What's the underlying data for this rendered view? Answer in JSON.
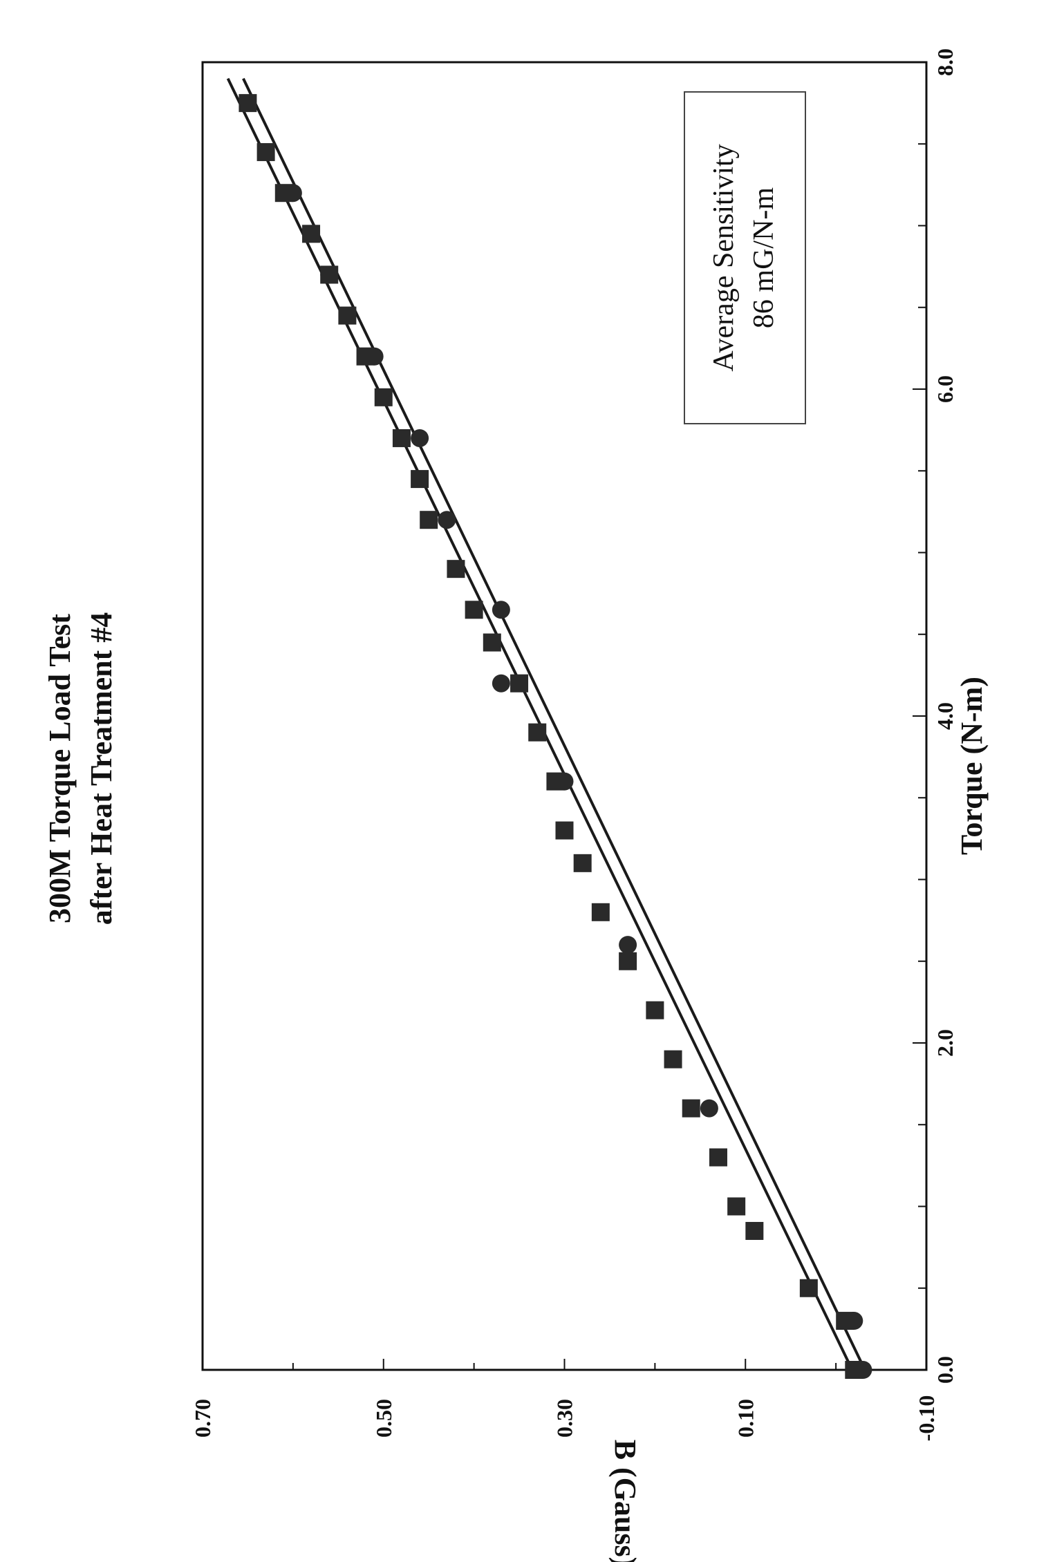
{
  "chart_data": {
    "type": "scatter",
    "title": "300M Torque Load Test",
    "subtitle": "after Heat Treatment #4",
    "xlabel": "Torque (N-m)",
    "ylabel": "B (Gauss)",
    "xlim": [
      0.0,
      8.0
    ],
    "ylim": [
      -0.1,
      0.7
    ],
    "x_ticks": [
      "0.0",
      "2.0",
      "4.0",
      "6.0",
      "8.0"
    ],
    "y_ticks": [
      "-0.10",
      "0.10",
      "0.30",
      "0.50",
      "0.70"
    ],
    "grid": false,
    "legend": "none",
    "annotation": [
      "Average Sensitivity",
      "86 mG/N-m"
    ],
    "orientation": "rotated-90-ccw",
    "series": [
      {
        "marker": "square",
        "color": "#2a2a2a",
        "points": [
          [
            0.0,
            -0.02
          ],
          [
            0.3,
            -0.01
          ],
          [
            0.5,
            0.03
          ],
          [
            0.85,
            0.09
          ],
          [
            1.0,
            0.11
          ],
          [
            1.3,
            0.13
          ],
          [
            1.6,
            0.16
          ],
          [
            1.9,
            0.18
          ],
          [
            2.2,
            0.2
          ],
          [
            2.5,
            0.23
          ],
          [
            2.8,
            0.26
          ],
          [
            3.1,
            0.28
          ],
          [
            3.3,
            0.3
          ],
          [
            3.6,
            0.31
          ],
          [
            3.9,
            0.33
          ],
          [
            4.2,
            0.35
          ],
          [
            4.45,
            0.38
          ],
          [
            4.65,
            0.4
          ],
          [
            4.9,
            0.42
          ],
          [
            5.2,
            0.45
          ],
          [
            5.45,
            0.46
          ],
          [
            5.7,
            0.48
          ],
          [
            5.95,
            0.5
          ],
          [
            6.2,
            0.52
          ],
          [
            6.45,
            0.54
          ],
          [
            6.7,
            0.56
          ],
          [
            6.95,
            0.58
          ],
          [
            7.2,
            0.61
          ],
          [
            7.45,
            0.63
          ],
          [
            7.75,
            0.65
          ]
        ]
      },
      {
        "marker": "circle",
        "color": "#2a2a2a",
        "points": [
          [
            0.0,
            -0.03
          ],
          [
            0.3,
            -0.02
          ],
          [
            1.6,
            0.14
          ],
          [
            2.6,
            0.23
          ],
          [
            3.6,
            0.3
          ],
          [
            4.2,
            0.37
          ],
          [
            4.65,
            0.37
          ],
          [
            5.2,
            0.43
          ],
          [
            5.7,
            0.46
          ],
          [
            6.2,
            0.51
          ],
          [
            6.7,
            0.56
          ],
          [
            7.2,
            0.6
          ]
        ]
      }
    ],
    "fit_lines": [
      {
        "x": [
          0.0,
          7.9
        ],
        "y": [
          -0.018,
          0.672
        ]
      },
      {
        "x": [
          0.0,
          7.9
        ],
        "y": [
          -0.032,
          0.655
        ]
      }
    ]
  }
}
